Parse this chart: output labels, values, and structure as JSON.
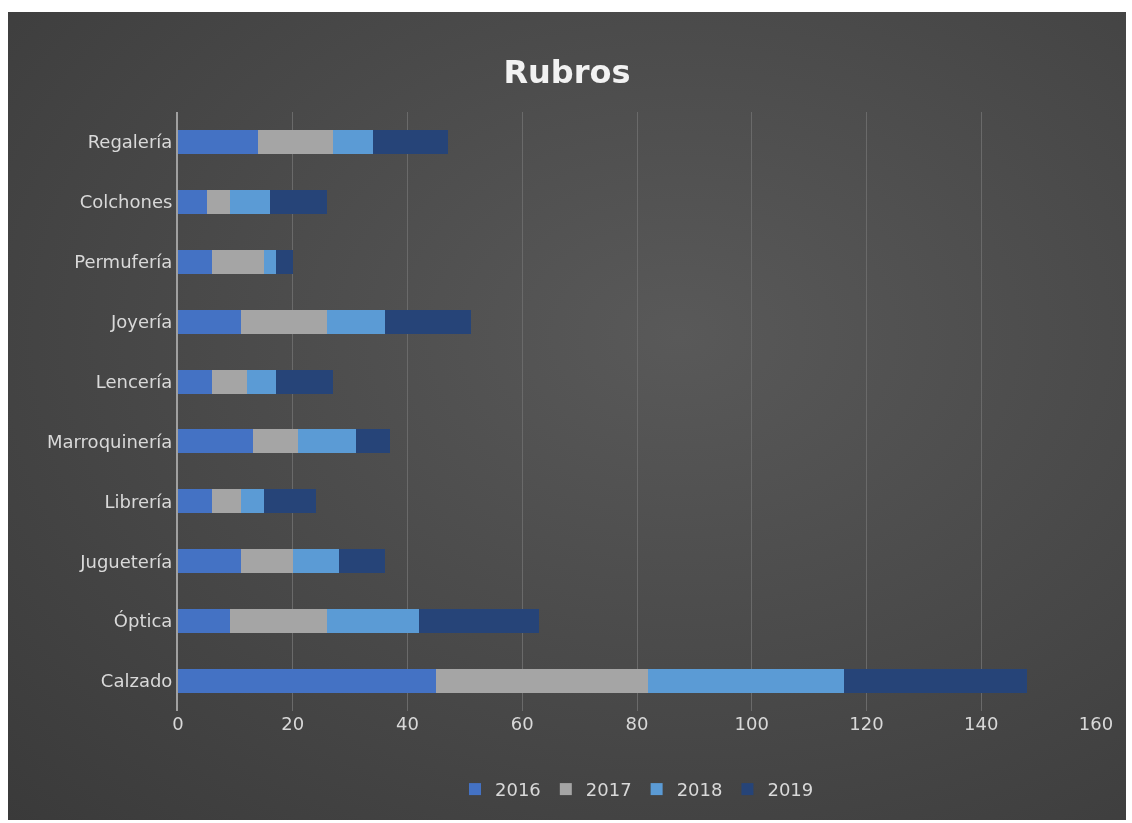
{
  "chart_data": {
    "type": "bar",
    "title": "Rubros",
    "orientation": "horizontal",
    "stacked": true,
    "categories": [
      "Regalería",
      "Colchones",
      "Permufería",
      "Joyería",
      "Lencería",
      "Marroquinería",
      "Librería",
      "Juguetería",
      "Óptica",
      "Calzado"
    ],
    "series": [
      {
        "name": "2016",
        "color": "#4472c4",
        "values": [
          14,
          5,
          6,
          11,
          6,
          13,
          6,
          11,
          9,
          45
        ]
      },
      {
        "name": "2017",
        "color": "#a5a5a5",
        "values": [
          13,
          4,
          9,
          15,
          6,
          8,
          5,
          9,
          17,
          37
        ]
      },
      {
        "name": "2018",
        "color": "#5b9bd5",
        "values": [
          7,
          7,
          2,
          10,
          5,
          10,
          4,
          8,
          16,
          34
        ]
      },
      {
        "name": "2019",
        "color": "#264478",
        "values": [
          13,
          10,
          3,
          15,
          10,
          6,
          9,
          8,
          21,
          32
        ]
      }
    ],
    "xlim": [
      0,
      160
    ],
    "xticks": [
      0,
      20,
      40,
      60,
      80,
      100,
      120,
      140,
      160
    ],
    "grid": "x",
    "legend": "bottom"
  }
}
